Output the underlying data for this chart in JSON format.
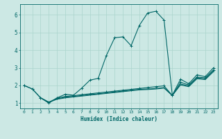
{
  "xlabel": "Humidex (Indice chaleur)",
  "bg_color": "#cce8e4",
  "grid_color": "#aad4cc",
  "line_color": "#006666",
  "xlim": [
    -0.5,
    23.5
  ],
  "ylim": [
    0.7,
    6.6
  ],
  "xticks": [
    0,
    1,
    2,
    3,
    4,
    5,
    6,
    7,
    8,
    9,
    10,
    11,
    12,
    13,
    14,
    15,
    16,
    17,
    18,
    19,
    20,
    21,
    22,
    23
  ],
  "yticks": [
    1,
    2,
    3,
    4,
    5,
    6
  ],
  "line1_x": [
    0,
    1,
    2,
    3,
    4,
    5,
    6,
    7,
    8,
    9,
    10,
    11,
    12,
    13,
    14,
    15,
    16,
    17,
    18,
    19,
    20,
    21,
    22,
    23
  ],
  "line1_y": [
    2.0,
    1.8,
    1.3,
    1.0,
    1.3,
    1.5,
    1.45,
    1.85,
    2.3,
    2.4,
    3.7,
    4.7,
    4.75,
    4.25,
    5.4,
    6.1,
    6.2,
    5.7,
    1.45,
    2.35,
    2.1,
    2.6,
    2.5,
    3.0
  ],
  "line2_x": [
    0,
    1,
    2,
    3,
    4,
    5,
    6,
    7,
    8,
    9,
    10,
    11,
    12,
    13,
    14,
    15,
    16,
    17,
    18,
    19,
    20,
    21,
    22,
    23
  ],
  "line2_y": [
    2.0,
    1.8,
    1.3,
    1.05,
    1.28,
    1.38,
    1.42,
    1.48,
    1.53,
    1.58,
    1.63,
    1.68,
    1.73,
    1.78,
    1.83,
    1.88,
    1.93,
    1.98,
    1.43,
    2.18,
    2.03,
    2.48,
    2.43,
    2.88
  ],
  "line3_x": [
    2,
    3,
    4,
    5,
    6,
    7,
    8,
    9,
    10,
    11,
    12,
    13,
    14,
    15,
    16,
    17,
    18,
    19,
    20,
    21,
    22,
    23
  ],
  "line3_y": [
    1.3,
    1.05,
    1.25,
    1.33,
    1.38,
    1.43,
    1.48,
    1.53,
    1.58,
    1.63,
    1.68,
    1.73,
    1.78,
    1.8,
    1.83,
    1.88,
    1.43,
    2.08,
    1.98,
    2.43,
    2.38,
    2.83
  ],
  "line4_x": [
    2,
    3,
    4,
    5,
    6,
    7,
    8,
    9,
    10,
    11,
    12,
    13,
    14,
    15,
    16,
    17,
    18,
    19,
    20,
    21,
    22,
    23
  ],
  "line4_y": [
    1.3,
    1.05,
    1.22,
    1.3,
    1.35,
    1.4,
    1.45,
    1.5,
    1.55,
    1.6,
    1.65,
    1.7,
    1.75,
    1.77,
    1.8,
    1.85,
    1.43,
    2.03,
    1.93,
    2.38,
    2.33,
    2.78
  ]
}
